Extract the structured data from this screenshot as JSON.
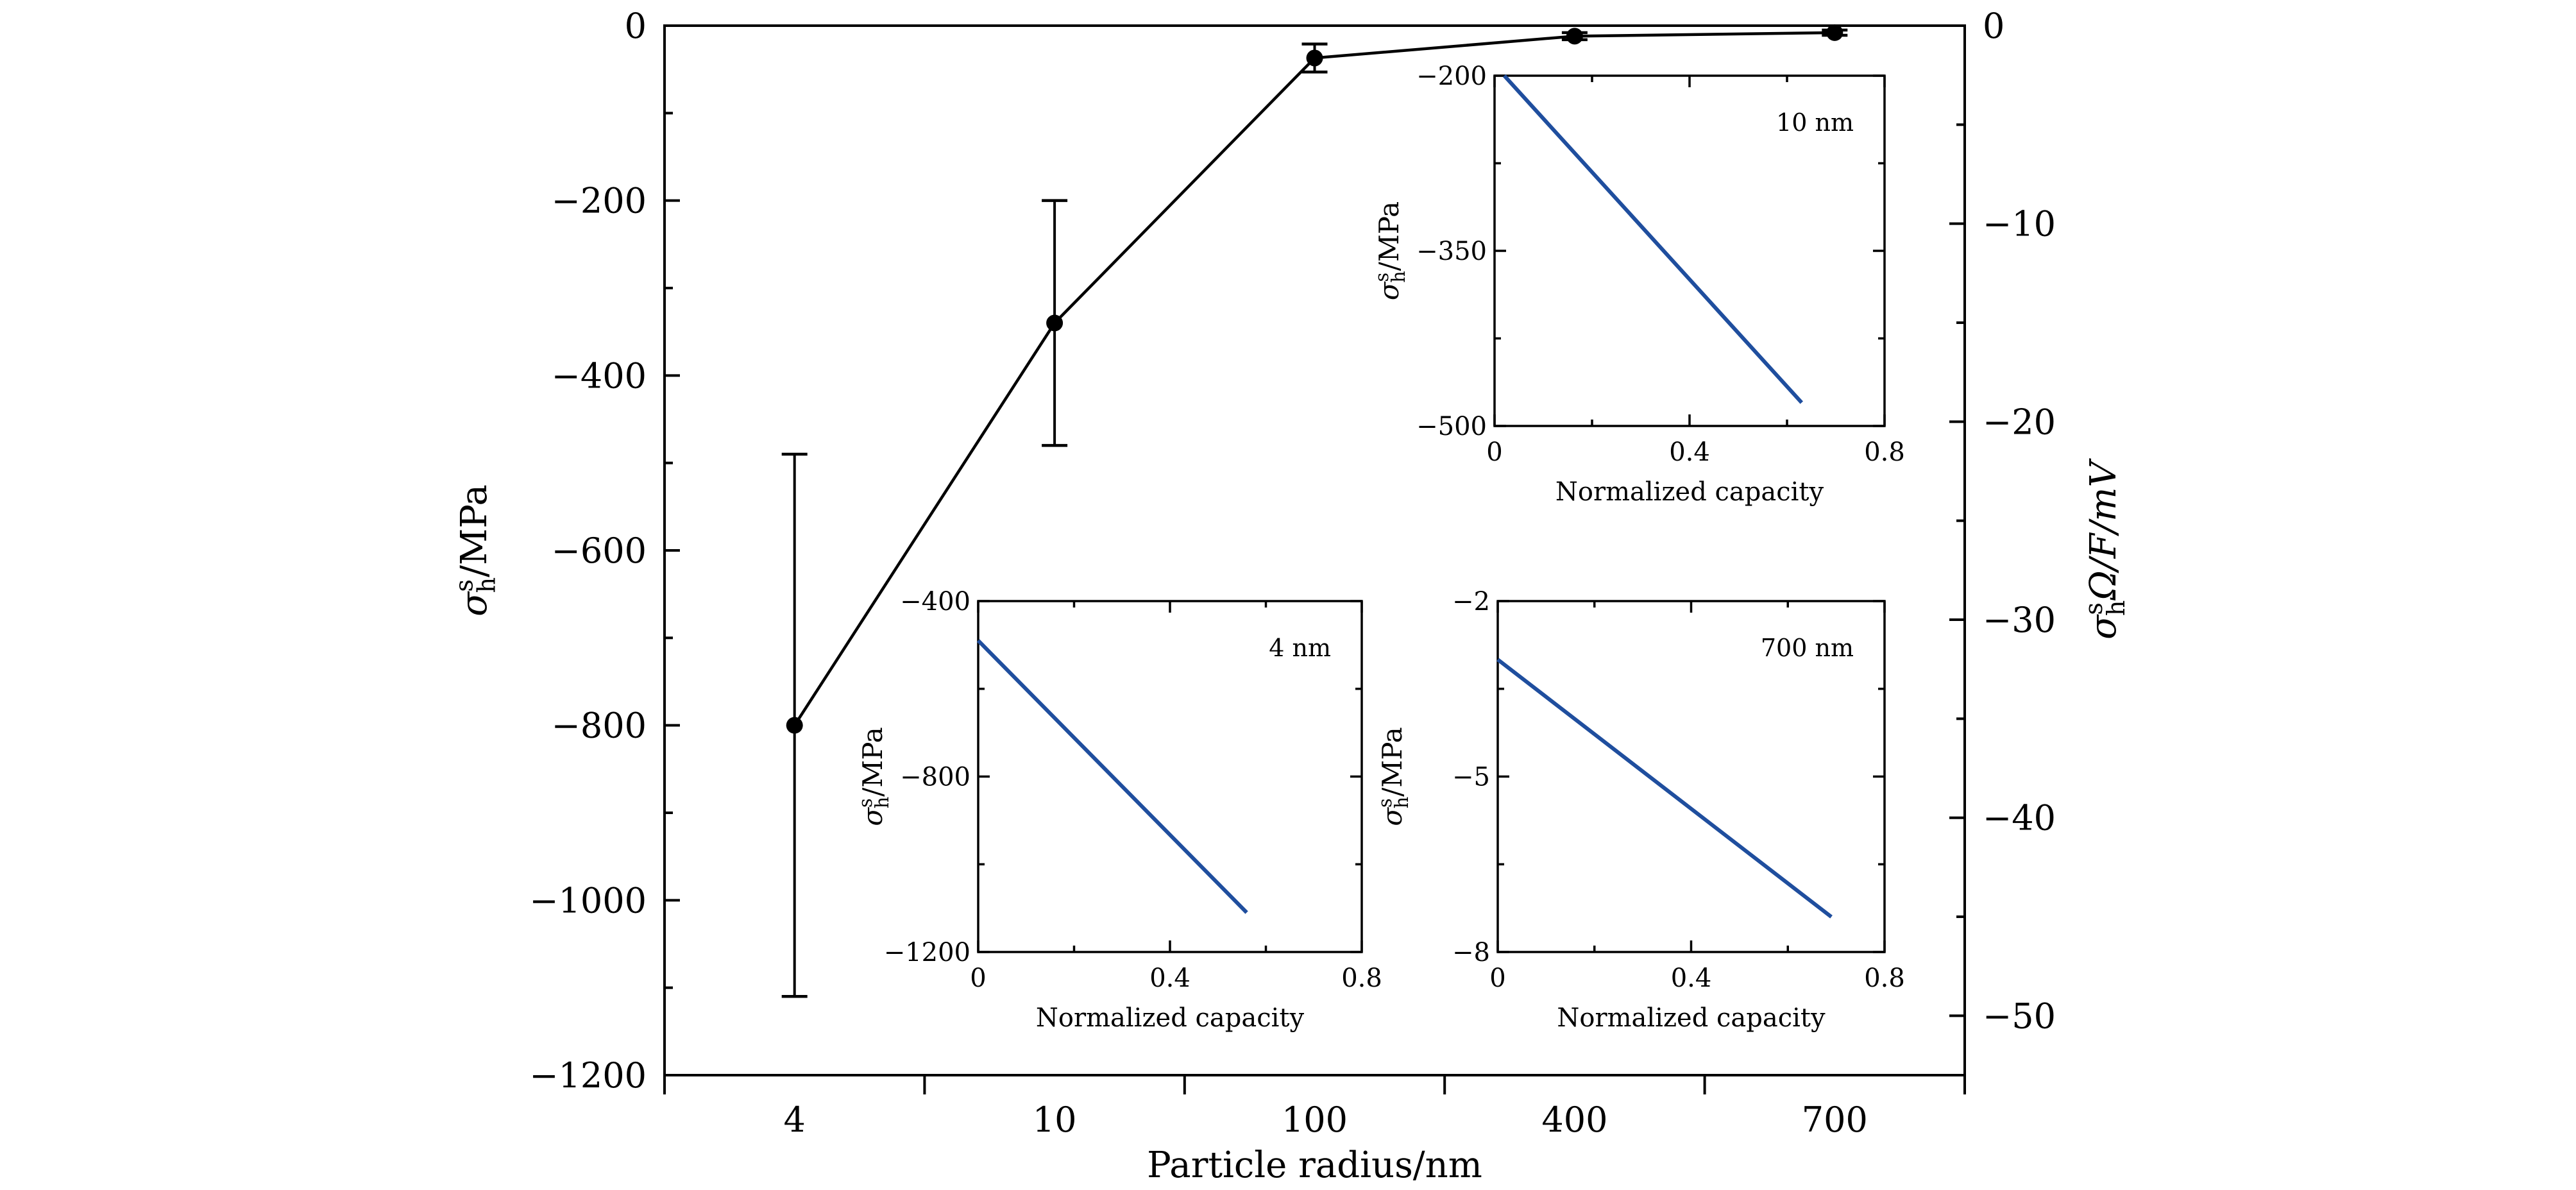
{
  "chart_data": [
    {
      "type": "line",
      "role": "main",
      "xlabel": "Particle radius/nm",
      "ylabel": "σ",
      "ylabel_sup": "s",
      "ylabel_sub": "h",
      "ylabel_tail": "/MPa",
      "y2label": "σ",
      "y2label_sup": "s",
      "y2label_sub": "h",
      "y2label_tail": "Ω/F/mV",
      "categories": [
        "4",
        "10",
        "100",
        "400",
        "700"
      ],
      "series": [
        {
          "values": [
            -800,
            -340,
            -37,
            -12,
            -8
          ],
          "error": [
            310,
            140,
            16,
            4,
            3
          ],
          "color": "#000000",
          "marker": "circle"
        }
      ],
      "ylim": [
        -1200,
        0
      ],
      "yticks": [
        "0",
        "−200",
        "−400",
        "−600",
        "−800",
        "−1000",
        "−1200"
      ],
      "y2lim": [
        -53,
        0
      ],
      "y2ticks": [
        "0",
        "−10",
        "−20",
        "−30",
        "−40",
        "−50"
      ],
      "grid": false
    },
    {
      "type": "line",
      "role": "inset",
      "annotation": "10 nm",
      "xlabel": "Normalized capacity",
      "ylabel": "σ",
      "ylabel_sup": "s",
      "ylabel_sub": "h",
      "ylabel_tail": "/MPa",
      "xlim": [
        0,
        0.8
      ],
      "xticks": [
        "0",
        "0.4",
        "0.8"
      ],
      "ylim": [
        -500,
        -200
      ],
      "yticks": [
        "−200",
        "−350",
        "−500"
      ],
      "series": [
        {
          "x": [
            0.02,
            0.63
          ],
          "y": [
            -200,
            -480
          ],
          "color": "#1f4e9e"
        }
      ]
    },
    {
      "type": "line",
      "role": "inset",
      "annotation": "4 nm",
      "xlabel": "Normalized capacity",
      "ylabel": "σ",
      "ylabel_sup": "s",
      "ylabel_sub": "h",
      "ylabel_tail": "/MPa",
      "xlim": [
        0,
        0.8
      ],
      "xticks": [
        "0",
        "0.4",
        "0.8"
      ],
      "ylim": [
        -1200,
        -400
      ],
      "yticks": [
        "−400",
        "−800",
        "−1200"
      ],
      "series": [
        {
          "x": [
            0,
            0.56
          ],
          "y": [
            -490,
            -1110
          ],
          "color": "#1f4e9e"
        }
      ]
    },
    {
      "type": "line",
      "role": "inset",
      "annotation": "700 nm",
      "xlabel": "Normalized capacity",
      "ylabel": "σ",
      "ylabel_sup": "s",
      "ylabel_sub": "h",
      "ylabel_tail": "/MPa",
      "xlim": [
        0,
        0.8
      ],
      "xticks": [
        "0",
        "0.4",
        "0.8"
      ],
      "ylim": [
        -8,
        -2
      ],
      "yticks": [
        "−2",
        "−5",
        "−8"
      ],
      "series": [
        {
          "x": [
            0,
            0.69
          ],
          "y": [
            -3.0,
            -7.4
          ],
          "color": "#1f4e9e"
        }
      ]
    }
  ]
}
